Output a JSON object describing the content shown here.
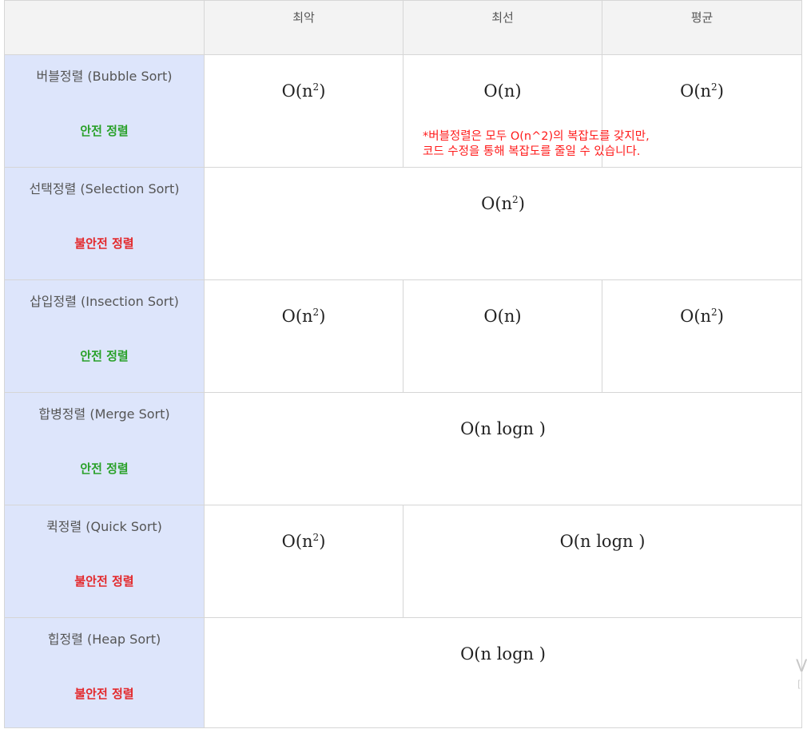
{
  "header": {
    "corner": "",
    "worst": "최악",
    "best": "최선",
    "average": "평균"
  },
  "rows": [
    {
      "name": "버블정렬 (Bubble Sort)",
      "stability": "안전 정렬",
      "worst": "O(n",
      "worst_exp": "2",
      "best": "O(n)",
      "avg": "O(n",
      "avg_exp": "2"
    },
    {
      "name": "선택정렬 (Selection Sort)",
      "stability": "불안전 정렬",
      "all": "O(n",
      "all_exp": "2"
    },
    {
      "name": "삽입정렬 (Insection Sort)",
      "stability": "안전 정렬",
      "worst": "O(n",
      "worst_exp": "2",
      "best": "O(n)",
      "avg": "O(n",
      "avg_exp": "2"
    },
    {
      "name": "합병정렬 (Merge Sort)",
      "stability": "안전 정렬",
      "all": "O(n logn )"
    },
    {
      "name": "퀵정렬 (Quick Sort)",
      "stability": "불안전 정렬",
      "worst": "O(n",
      "worst_exp": "2",
      "best_avg": "O(n logn )"
    },
    {
      "name": "힙정렬 (Heap Sort)",
      "stability": "불안전 정렬",
      "all": "O(n logn )"
    }
  ],
  "note": {
    "line1": "*버블정렬은 모두 O(n^2)의 복잡도를 갖지만,",
    "line2": "코드 수정을 통해 복잡도를 줄일 수 있습니다."
  },
  "colors": {
    "stable": "#2aa12a",
    "unstable": "#e3282b",
    "algo_bg": "#dde5fb",
    "note": "#ff1a1a"
  }
}
